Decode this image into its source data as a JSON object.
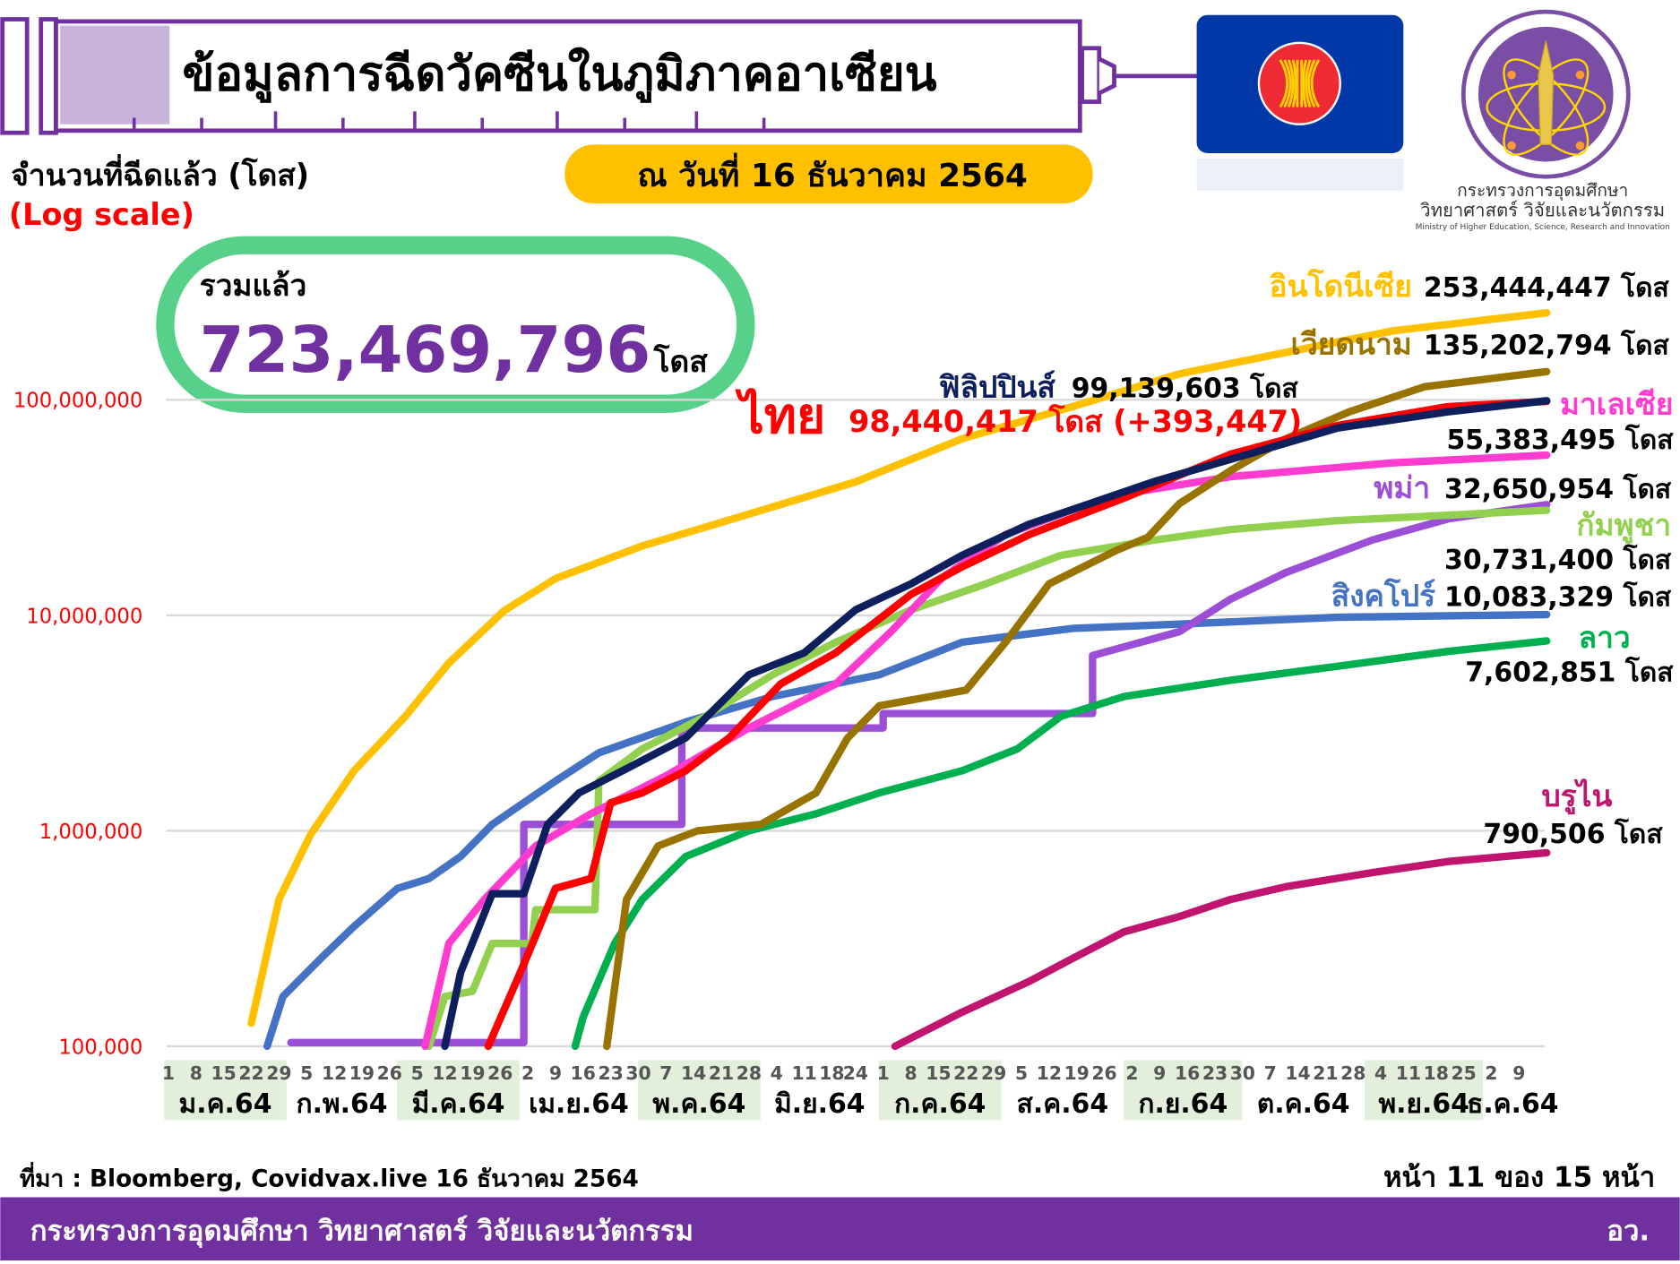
{
  "header": {
    "title": "ข้อมูลการฉีดวัคซีนในภูมิภาคอาเซียน",
    "as_of": "ณ วันที่ 16 ธันวาคม 2564",
    "ministry_th_line1": "กระทรวงการอุดมศึกษา",
    "ministry_th_line2": "วิทยาศาสตร์ วิจัยและนวัตกรรม",
    "ministry_en": "Ministry of Higher Education, Science, Research and Innovation"
  },
  "y_caption": "จำนวนที่ฉีดแล้ว (โดส)",
  "scale_note": "(Log scale)",
  "total": {
    "label": "รวมแล้ว",
    "value": "723,469,796",
    "unit": "โดส"
  },
  "footer": {
    "source": "ที่มา : Bloomberg, Covidvax.live 16 ธันวาคม 2564",
    "page": "หน้า 11 ของ 15 หน้า",
    "org": "กระทรวงการอุดมศึกษา วิทยาศาสตร์ วิจัยและนวัตกรรม",
    "org_short": "อว."
  },
  "colors": {
    "brand_purple": "#7030a0",
    "accent_yellow": "#ffc000",
    "total_green": "#57d08a",
    "month_band": "#e2efda"
  },
  "chart_data": {
    "type": "line",
    "title": "",
    "ylabel": "จำนวนที่ฉีดแล้ว (โดส)",
    "yscale": "log",
    "ylim": [
      100000,
      300000000
    ],
    "yticks": [
      {
        "value": 100000,
        "label": "100,000"
      },
      {
        "value": 1000000,
        "label": "1,000,000"
      },
      {
        "value": 10000000,
        "label": "10,000,000"
      },
      {
        "value": 100000000,
        "label": "100,000,000"
      }
    ],
    "grid": true,
    "xlim": [
      "2021-01-01",
      "2021-12-16"
    ],
    "months": [
      {
        "label": "ม.ค.64",
        "m": 1,
        "days": [
          "1",
          "8",
          "15",
          "22",
          "29"
        ],
        "shaded": true
      },
      {
        "label": "ก.พ.64",
        "m": 2,
        "days": [
          "5",
          "12",
          "19",
          "26"
        ],
        "shaded": false
      },
      {
        "label": "มี.ค.64",
        "m": 3,
        "days": [
          "5",
          "12",
          "19",
          "26"
        ],
        "shaded": true
      },
      {
        "label": "เม.ย.64",
        "m": 4,
        "days": [
          "2",
          "9",
          "16",
          "23",
          "30"
        ],
        "shaded": false
      },
      {
        "label": "พ.ค.64",
        "m": 5,
        "days": [
          "7",
          "14",
          "21",
          "28"
        ],
        "shaded": true
      },
      {
        "label": "มิ.ย.64",
        "m": 6,
        "days": [
          "4",
          "11",
          "18",
          "24"
        ],
        "shaded": false
      },
      {
        "label": "ก.ค.64",
        "m": 7,
        "days": [
          "1",
          "8",
          "15",
          "22",
          "29"
        ],
        "shaded": true
      },
      {
        "label": "ส.ค.64",
        "m": 8,
        "days": [
          "5",
          "12",
          "19",
          "26"
        ],
        "shaded": false
      },
      {
        "label": "ก.ย.64",
        "m": 9,
        "days": [
          "2",
          "9",
          "16",
          "23",
          "30"
        ],
        "shaded": true
      },
      {
        "label": "ต.ค.64",
        "m": 10,
        "days": [
          "7",
          "14",
          "21",
          "28"
        ],
        "shaded": false
      },
      {
        "label": "พ.ย.64",
        "m": 11,
        "days": [
          "4",
          "11",
          "18",
          "25"
        ],
        "shaded": true
      },
      {
        "label": "ธ.ค.64",
        "m": 12,
        "days": [
          "2",
          "9"
        ],
        "shaded": false
      }
    ],
    "series": [
      {
        "name": "สิงคโปร์",
        "total": "10,083,329 โดส",
        "color": "#4472c4",
        "points": [
          [
            "2021-01-26",
            100000
          ],
          [
            "2021-01-30",
            170000
          ],
          [
            "2021-02-09",
            260000
          ],
          [
            "2021-02-17",
            360000
          ],
          [
            "2021-02-28",
            540000
          ],
          [
            "2021-03-08",
            600000
          ],
          [
            "2021-03-16",
            760000
          ],
          [
            "2021-03-24",
            1070000
          ],
          [
            "2021-04-01",
            1350000
          ],
          [
            "2021-04-09",
            1700000
          ],
          [
            "2021-04-20",
            2300000
          ],
          [
            "2021-05-12",
            3200000
          ],
          [
            "2021-06-03",
            4200000
          ],
          [
            "2021-06-30",
            5300000
          ],
          [
            "2021-07-21",
            7500000
          ],
          [
            "2021-08-18",
            8700000
          ],
          [
            "2021-09-14",
            9100000
          ],
          [
            "2021-10-24",
            9800000
          ],
          [
            "2021-12-16",
            10083329
          ]
        ]
      },
      {
        "name": "พม่า",
        "total": "32,650,954 โดส",
        "color": "#9b4ed6",
        "points": [
          [
            "2021-02-01",
            104000
          ],
          [
            "2021-04-01",
            104000
          ],
          [
            "2021-04-01",
            1070000
          ],
          [
            "2021-05-11",
            1070000
          ],
          [
            "2021-05-11",
            3000000
          ],
          [
            "2021-07-01",
            3000000
          ],
          [
            "2021-07-01",
            3500000
          ],
          [
            "2021-08-23",
            3500000
          ],
          [
            "2021-08-23",
            6500000
          ],
          [
            "2021-09-14",
            8400000
          ],
          [
            "2021-09-27",
            11900000
          ],
          [
            "2021-10-11",
            15800000
          ],
          [
            "2021-11-02",
            22400000
          ],
          [
            "2021-11-21",
            28000000
          ],
          [
            "2021-12-16",
            32650954
          ]
        ]
      },
      {
        "name": "กัมพูชา",
        "total": "30,731,400 โดส",
        "color": "#92d050",
        "points": [
          [
            "2021-03-08",
            100000
          ],
          [
            "2021-03-12",
            170000
          ],
          [
            "2021-03-19",
            180000
          ],
          [
            "2021-03-24",
            300000
          ],
          [
            "2021-04-03",
            300000
          ],
          [
            "2021-04-04",
            430000
          ],
          [
            "2021-04-19",
            430000
          ],
          [
            "2021-04-20",
            1700000
          ],
          [
            "2021-05-01",
            2400000
          ],
          [
            "2021-05-17",
            3400000
          ],
          [
            "2021-06-03",
            5300000
          ],
          [
            "2021-06-19",
            7500000
          ],
          [
            "2021-07-08",
            10600000
          ],
          [
            "2021-07-27",
            14000000
          ],
          [
            "2021-08-15",
            19000000
          ],
          [
            "2021-09-08",
            22400000
          ],
          [
            "2021-09-27",
            25000000
          ],
          [
            "2021-10-24",
            27500000
          ],
          [
            "2021-12-16",
            30731400
          ]
        ]
      },
      {
        "name": "ลาว",
        "total": "7,602,851 โดส",
        "color": "#00b050",
        "points": [
          [
            "2021-04-14",
            100000
          ],
          [
            "2021-04-16",
            136000
          ],
          [
            "2021-04-24",
            300000
          ],
          [
            "2021-05-01",
            480000
          ],
          [
            "2021-05-12",
            760000
          ],
          [
            "2021-05-28",
            1000000
          ],
          [
            "2021-06-14",
            1200000
          ],
          [
            "2021-06-30",
            1500000
          ],
          [
            "2021-07-21",
            1900000
          ],
          [
            "2021-08-04",
            2400000
          ],
          [
            "2021-08-15",
            3400000
          ],
          [
            "2021-08-31",
            4200000
          ],
          [
            "2021-09-27",
            5000000
          ],
          [
            "2021-10-24",
            5800000
          ],
          [
            "2021-11-21",
            6800000
          ],
          [
            "2021-12-16",
            7602851
          ]
        ]
      },
      {
        "name": "บรูไน",
        "total": "790,506 โดส",
        "color": "#c0146e",
        "points": [
          [
            "2021-07-04",
            100000
          ],
          [
            "2021-07-21",
            144000
          ],
          [
            "2021-08-07",
            200000
          ],
          [
            "2021-08-18",
            256000
          ],
          [
            "2021-08-31",
            340000
          ],
          [
            "2021-09-14",
            400000
          ],
          [
            "2021-09-27",
            480000
          ],
          [
            "2021-10-11",
            550000
          ],
          [
            "2021-11-02",
            640000
          ],
          [
            "2021-11-21",
            720000
          ],
          [
            "2021-12-16",
            790506
          ]
        ]
      },
      {
        "name": "อินโดนีเซีย",
        "total": "253,444,447 โดส",
        "color": "#ffc000",
        "points": [
          [
            "2021-01-22",
            128000
          ],
          [
            "2021-01-29",
            480000
          ],
          [
            "2021-02-06",
            960000
          ],
          [
            "2021-02-17",
            1900000
          ],
          [
            "2021-03-02",
            3400000
          ],
          [
            "2021-03-13",
            6000000
          ],
          [
            "2021-03-27",
            10500000
          ],
          [
            "2021-04-09",
            14800000
          ],
          [
            "2021-05-01",
            21000000
          ],
          [
            "2021-05-28",
            29500000
          ],
          [
            "2021-06-24",
            41600000
          ],
          [
            "2021-07-21",
            66000000
          ],
          [
            "2021-08-18",
            93000000
          ],
          [
            "2021-09-14",
            132000000
          ],
          [
            "2021-10-11",
            166000000
          ],
          [
            "2021-11-07",
            209000000
          ],
          [
            "2021-12-16",
            253444447
          ]
        ]
      },
      {
        "name": "มาเลเซีย",
        "total": "55,383,495 โดส",
        "color": "#ff3ccf",
        "points": [
          [
            "2021-03-07",
            100000
          ],
          [
            "2021-03-13",
            300000
          ],
          [
            "2021-03-22",
            480000
          ],
          [
            "2021-04-04",
            850000
          ],
          [
            "2021-04-18",
            1200000
          ],
          [
            "2021-05-07",
            1800000
          ],
          [
            "2021-05-28",
            3000000
          ],
          [
            "2021-06-19",
            4800000
          ],
          [
            "2021-07-03",
            8400000
          ],
          [
            "2021-07-16",
            15000000
          ],
          [
            "2021-08-01",
            23700000
          ],
          [
            "2021-08-18",
            31000000
          ],
          [
            "2021-08-31",
            36700000
          ],
          [
            "2021-09-27",
            44000000
          ],
          [
            "2021-11-07",
            51000000
          ],
          [
            "2021-12-16",
            55383495
          ]
        ]
      },
      {
        "name": "เวียดนาม",
        "total": "135,202,794 โดส",
        "color": "#997300",
        "points": [
          [
            "2021-04-22",
            100000
          ],
          [
            "2021-04-27",
            480000
          ],
          [
            "2021-05-05",
            850000
          ],
          [
            "2021-05-15",
            1000000
          ],
          [
            "2021-05-31",
            1070000
          ],
          [
            "2021-06-14",
            1500000
          ],
          [
            "2021-06-22",
            2700000
          ],
          [
            "2021-06-30",
            3800000
          ],
          [
            "2021-07-22",
            4500000
          ],
          [
            "2021-08-01",
            7500000
          ],
          [
            "2021-08-12",
            14000000
          ],
          [
            "2021-08-29",
            20000000
          ],
          [
            "2021-09-06",
            23000000
          ],
          [
            "2021-09-14",
            33000000
          ],
          [
            "2021-09-27",
            47000000
          ],
          [
            "2021-10-11",
            66000000
          ],
          [
            "2021-10-27",
            88000000
          ],
          [
            "2021-11-15",
            115000000
          ],
          [
            "2021-12-16",
            135202794
          ]
        ]
      },
      {
        "name": "ไทย",
        "total": "98,440,417 โดส (+393,447)",
        "color": "#ff0000",
        "points": [
          [
            "2021-03-23",
            100000
          ],
          [
            "2021-04-01",
            240000
          ],
          [
            "2021-04-09",
            540000
          ],
          [
            "2021-04-18",
            600000
          ],
          [
            "2021-04-23",
            1350000
          ],
          [
            "2021-05-01",
            1500000
          ],
          [
            "2021-05-12",
            1900000
          ],
          [
            "2021-05-23",
            2700000
          ],
          [
            "2021-06-05",
            4800000
          ],
          [
            "2021-06-19",
            6700000
          ],
          [
            "2021-07-08",
            12500000
          ],
          [
            "2021-07-21",
            16800000
          ],
          [
            "2021-08-07",
            23700000
          ],
          [
            "2021-08-31",
            35000000
          ],
          [
            "2021-09-27",
            56000000
          ],
          [
            "2021-10-24",
            76000000
          ],
          [
            "2021-11-21",
            93000000
          ],
          [
            "2021-12-16",
            98440417
          ]
        ]
      },
      {
        "name": "ฟิลิปปินส์",
        "total": "99,139,603 โดส",
        "color": "#0d1f5c",
        "points": [
          [
            "2021-03-12",
            100000
          ],
          [
            "2021-03-16",
            220000
          ],
          [
            "2021-03-24",
            510000
          ],
          [
            "2021-04-01",
            510000
          ],
          [
            "2021-04-07",
            1070000
          ],
          [
            "2021-04-15",
            1500000
          ],
          [
            "2021-04-26",
            1900000
          ],
          [
            "2021-05-12",
            2700000
          ],
          [
            "2021-05-28",
            5300000
          ],
          [
            "2021-06-11",
            6700000
          ],
          [
            "2021-06-24",
            10600000
          ],
          [
            "2021-07-08",
            14000000
          ],
          [
            "2021-07-21",
            19000000
          ],
          [
            "2021-08-07",
            26500000
          ],
          [
            "2021-08-18",
            31000000
          ],
          [
            "2021-09-08",
            42000000
          ],
          [
            "2021-09-27",
            53000000
          ],
          [
            "2021-10-24",
            74000000
          ],
          [
            "2021-11-21",
            88000000
          ],
          [
            "2021-12-16",
            99139603
          ]
        ]
      }
    ]
  }
}
